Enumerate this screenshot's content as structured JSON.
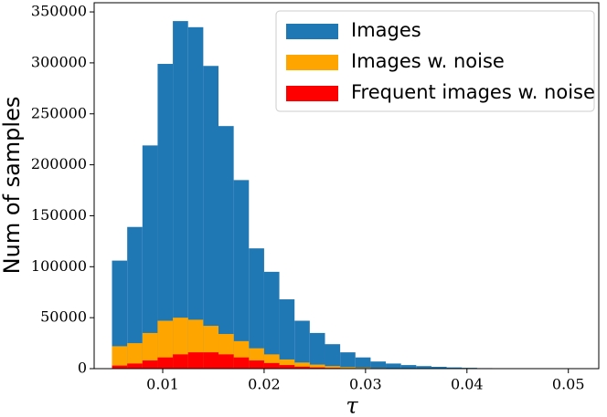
{
  "chart_data": {
    "type": "histogram",
    "xlabel": "τ",
    "ylabel": "Num of samples",
    "bins": [
      0.005,
      0.0065,
      0.008,
      0.0095,
      0.011,
      0.0125,
      0.014,
      0.0155,
      0.017,
      0.0185,
      0.02,
      0.0215,
      0.023,
      0.0245,
      0.026,
      0.0275,
      0.029,
      0.0305,
      0.032,
      0.0335,
      0.035,
      0.0365,
      0.038,
      0.0395,
      0.041,
      0.0425,
      0.044,
      0.0455,
      0.047,
      0.0485,
      0.05
    ],
    "series": [
      {
        "name": "Images",
        "color": "#1f77b4",
        "values": [
          106000,
          139000,
          219000,
          299000,
          341000,
          335000,
          297000,
          238000,
          185000,
          118000,
          95000,
          68000,
          47000,
          35000,
          24000,
          16000,
          11000,
          7000,
          5000,
          3500,
          2500,
          1800,
          1200,
          800,
          500,
          400,
          300,
          200,
          150,
          100
        ]
      },
      {
        "name": "Images w. noise",
        "color": "#ffa500",
        "values": [
          22000,
          25000,
          35000,
          47000,
          50000,
          48000,
          42000,
          34000,
          27000,
          20000,
          14000,
          9000,
          6000,
          4000,
          2500,
          1500,
          1000,
          600,
          400,
          250,
          150,
          100,
          60,
          40,
          30,
          20,
          10,
          5,
          3,
          2
        ]
      },
      {
        "name": "Frequent images w. noise",
        "color": "#ff0000",
        "values": [
          3000,
          5000,
          8000,
          11000,
          14000,
          16000,
          16000,
          14000,
          11000,
          8000,
          5500,
          3500,
          2000,
          1200,
          700,
          400,
          250,
          150,
          80,
          50,
          30,
          20,
          10,
          5,
          3,
          2,
          1,
          1,
          0,
          0
        ]
      }
    ],
    "xlim": [
      0.00324,
      0.053
    ],
    "ylim": [
      0,
      359000
    ],
    "xticks": [
      0.01,
      0.02,
      0.03,
      0.04,
      0.05
    ],
    "yticks": [
      0,
      50000,
      100000,
      150000,
      200000,
      250000,
      300000,
      350000
    ],
    "legend": "upper right"
  }
}
